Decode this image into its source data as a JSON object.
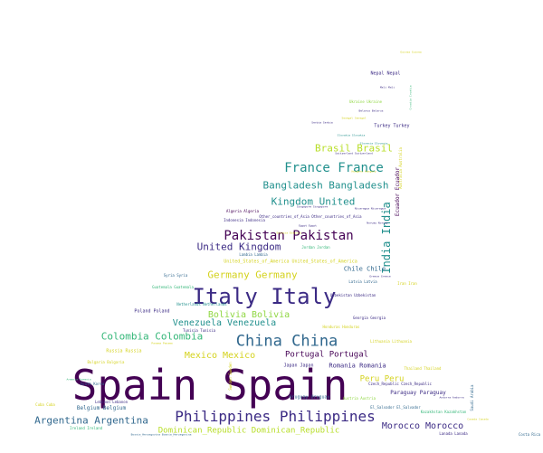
{
  "palette": {
    "dark_purple": "#440154",
    "indigo": "#3b2a84",
    "blue": "#31688e",
    "teal": "#21908d",
    "green": "#35b779",
    "lime": "#90d743",
    "yellow": "#d4d21d"
  },
  "words": [
    {
      "text": "Spain Spain",
      "color": "#440154"
    },
    {
      "text": "Italy Italy",
      "color": "#3b2a84"
    },
    {
      "text": "Philippines Philippines",
      "color": "#3b2a84"
    },
    {
      "text": "China China",
      "color": "#31688e"
    },
    {
      "text": "France France",
      "color": "#21908d"
    },
    {
      "text": "Pakistan Pakistan",
      "color": "#440154"
    },
    {
      "text": "Bangladesh Bangladesh",
      "color": "#21908d"
    },
    {
      "text": "Kingdom United",
      "color": "#21908d"
    },
    {
      "text": "Brasil Brasil",
      "color": "#b8de29"
    },
    {
      "text": "United Kingdom",
      "color": "#3b2a84"
    },
    {
      "text": "Germany Germany",
      "color": "#d4d21d"
    },
    {
      "text": "India India",
      "color": "#21908d"
    },
    {
      "text": "Colombia Colombia",
      "color": "#35b779"
    },
    {
      "text": "Argentina Argentina",
      "color": "#31688e"
    },
    {
      "text": "Dominican_Republic Dominican_Republic",
      "color": "#b8de29"
    },
    {
      "text": "Morocco Morocco",
      "color": "#3b2a84"
    },
    {
      "text": "Venezuela Venezuela",
      "color": "#21908d"
    },
    {
      "text": "Bolivia Bolivia",
      "color": "#90d743"
    },
    {
      "text": "Mexico Mexico",
      "color": "#d4d21d"
    },
    {
      "text": "Portugal Portugal",
      "color": "#440154"
    },
    {
      "text": "Peru Peru",
      "color": "#d4d21d"
    },
    {
      "text": "Romania Romania",
      "color": "#3b2a84"
    },
    {
      "text": "Paraguay Paraguay",
      "color": "#3b2a84"
    },
    {
      "text": "Chile Chile",
      "color": "#31688e"
    },
    {
      "text": "Nepal Nepal",
      "color": "#3b2a84"
    },
    {
      "text": "Turkey Turkey",
      "color": "#3b2a84"
    },
    {
      "text": "Ukraine Ukraine",
      "color": "#90d743"
    },
    {
      "text": "Ecuador Ecuador",
      "color": "#440154"
    },
    {
      "text": "Australia Australia",
      "color": "#d4d21d"
    },
    {
      "text": "Belgium Belgium",
      "color": "#31688e"
    },
    {
      "text": "Japan Japan",
      "color": "#3b2a84"
    },
    {
      "text": "Uruguay Uruguay",
      "color": "#31688e"
    },
    {
      "text": "Poland Poland",
      "color": "#3b2a84"
    },
    {
      "text": "Russia Russia",
      "color": "#d4d21d"
    },
    {
      "text": "Austria Austria",
      "color": "#90d743"
    },
    {
      "text": "Bulgaria Bulgaria",
      "color": "#d4d21d"
    },
    {
      "text": "Honduras Honduras",
      "color": "#d4d21d"
    },
    {
      "text": "Georgia Georgia",
      "color": "#3b2a84"
    },
    {
      "text": "Mali Mali",
      "color": "#3b2a84"
    },
    {
      "text": "Cuba Cuba",
      "color": "#d4d21d"
    },
    {
      "text": "Ireland Ireland",
      "color": "#35b779"
    },
    {
      "text": "Lebanon Lebanon",
      "color": "#3b2a84"
    },
    {
      "text": "Saudi Arabia",
      "color": "#31688e"
    },
    {
      "text": "Lanada Lanada",
      "color": "#3b2a84"
    },
    {
      "text": "Costa Rica",
      "color": "#31688e"
    },
    {
      "text": "Czech_Republic Czech_Republic",
      "color": "#3b2a84"
    },
    {
      "text": "El_Salvador El_Salvador",
      "color": "#31688e"
    },
    {
      "text": "Andorra Andorra",
      "color": "#3b2a84"
    },
    {
      "text": "Thailand Thailand",
      "color": "#d4d21d"
    },
    {
      "text": "Lithuania Lithuania",
      "color": "#d4d21d"
    },
    {
      "text": "Kazakhstan Kazakhstan",
      "color": "#35b779"
    },
    {
      "text": "Armenia Armenia",
      "color": "#35b779"
    },
    {
      "text": "South Korea",
      "color": "#31688e"
    },
    {
      "text": "Panama Panama",
      "color": "#d4d21d"
    },
    {
      "text": "Belarus Belarus",
      "color": "#3b2a84"
    },
    {
      "text": "Serbia Serbia",
      "color": "#3b2a84"
    },
    {
      "text": "Slovakia Slovakia",
      "color": "#21908d"
    },
    {
      "text": "Algeria Algeria",
      "color": "#440154"
    },
    {
      "text": "Nicaragua Nicaragua",
      "color": "#3b2a84"
    },
    {
      "text": "Indonesia Indonesia",
      "color": "#3b2a84"
    },
    {
      "text": "Norway Norway",
      "color": "#3b2a84"
    },
    {
      "text": "Estonia Estonia",
      "color": "#d4d21d"
    },
    {
      "text": "Other_countries_of_Asia Other_countries_of_Asia",
      "color": "#3b2a84"
    },
    {
      "text": "United_States_of_America United_States_of_America",
      "color": "#d4d21d"
    },
    {
      "text": "Lambia Lambia",
      "color": "#31688e"
    },
    {
      "text": "Syria Syria",
      "color": "#31688e"
    },
    {
      "text": "Uzbekistan Uzbekistan",
      "color": "#3b2a84"
    },
    {
      "text": "Tunisia Tunisia",
      "color": "#3b2a84"
    },
    {
      "text": "Iran Iran",
      "color": "#d4d21d"
    },
    {
      "text": "Latvia Latvia",
      "color": "#31688e"
    },
    {
      "text": "Slovenia Slovenia",
      "color": "#21908d"
    },
    {
      "text": "Switzerland Switzerland",
      "color": "#3b2a84"
    },
    {
      "text": "Hungary Hungary",
      "color": "#d4d21d"
    },
    {
      "text": "Senegal Senegal",
      "color": "#d4d21d"
    },
    {
      "text": "Greece Greece",
      "color": "#3b2a84"
    },
    {
      "text": "Jordan Jordan",
      "color": "#35b779"
    },
    {
      "text": "Egypt Egypt",
      "color": "#3b2a84"
    },
    {
      "text": "Bosnia_Herzegovina Bosnia_Herzegovina",
      "color": "#31688e"
    },
    {
      "text": "Guatemala Guatemala",
      "color": "#35b779"
    },
    {
      "text": "Netherlands Netherlands",
      "color": "#21908d"
    },
    {
      "text": "Sweden Sweden",
      "color": "#d4d21d"
    },
    {
      "text": "Canada Canada",
      "color": "#d4d21d"
    },
    {
      "text": "Singapore Singapore",
      "color": "#3b2a84"
    },
    {
      "text": "Croatia Croatia",
      "color": "#35b779"
    },
    {
      "text": "Guinea Guinea",
      "color": "#d4d21d"
    }
  ]
}
